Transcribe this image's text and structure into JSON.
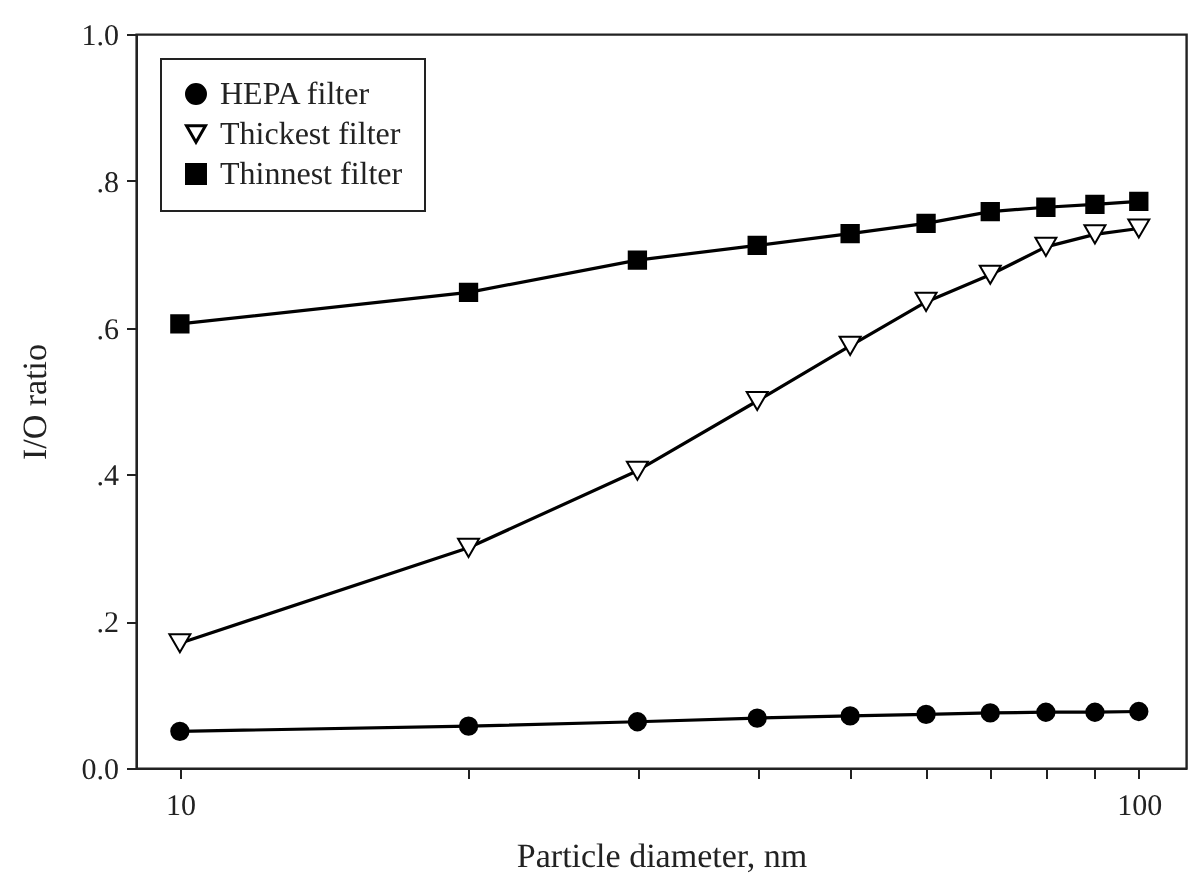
{
  "chart_data": {
    "type": "line",
    "xlabel": "Particle diameter, nm",
    "ylabel": "I/O ratio",
    "log": "x",
    "x": [
      10,
      20,
      30,
      40,
      50,
      60,
      70,
      80,
      90,
      100
    ],
    "xlim": [
      9,
      112
    ],
    "xticks": [
      10,
      {
        "value": 20,
        "label": null
      },
      {
        "value": 30,
        "label": null
      },
      {
        "value": 40,
        "label": null
      },
      {
        "value": 50,
        "label": null
      },
      {
        "value": 60,
        "label": null
      },
      {
        "value": 70,
        "label": null
      },
      {
        "value": 80,
        "label": null
      },
      {
        "value": 90,
        "label": null
      },
      100
    ],
    "ylim": [
      0,
      1
    ],
    "yticks": [
      {
        "value": 0,
        "label": "0.0"
      },
      {
        "value": 0.2,
        "label": ".2"
      },
      {
        "value": 0.4,
        "label": ".4"
      },
      {
        "value": 0.6,
        "label": ".6"
      },
      {
        "value": 0.8,
        "label": ".8"
      },
      {
        "value": 1,
        "label": "1.0"
      }
    ],
    "grid": false,
    "legend": "top left",
    "line_style": "solid",
    "series": [
      {
        "name": "HEPA filter",
        "color": "#000000",
        "marker": "circle",
        "values": [
          0.05,
          0.057,
          0.063,
          0.068,
          0.071,
          0.073,
          0.075,
          0.076,
          0.076,
          0.077
        ]
      },
      {
        "name": "Thickest filter",
        "color": "#000000",
        "marker": "triangle",
        "values": [
          0.17,
          0.3,
          0.405,
          0.5,
          0.575,
          0.635,
          0.672,
          0.71,
          0.727,
          0.735
        ]
      },
      {
        "name": "Thinnest filter",
        "color": "#000000",
        "marker": "square",
        "values": [
          0.605,
          0.648,
          0.692,
          0.712,
          0.728,
          0.742,
          0.758,
          0.764,
          0.768,
          0.772
        ]
      }
    ]
  }
}
